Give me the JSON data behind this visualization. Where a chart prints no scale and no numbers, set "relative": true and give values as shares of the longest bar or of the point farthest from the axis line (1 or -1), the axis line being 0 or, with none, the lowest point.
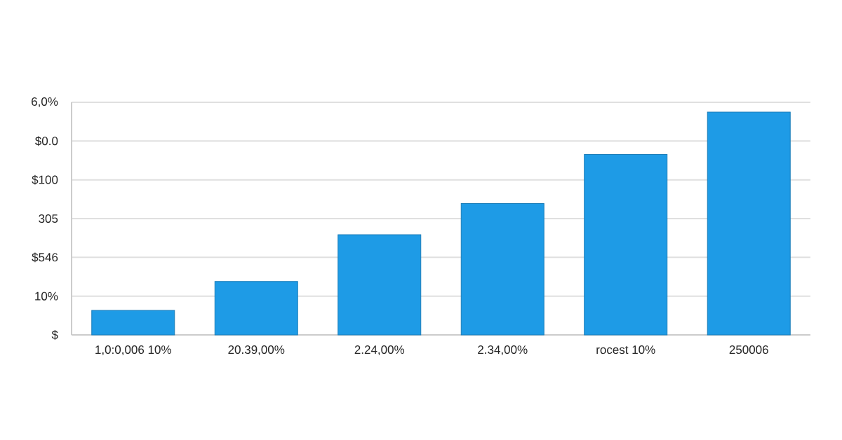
{
  "chart_data": {
    "type": "bar",
    "categories": [
      "1,0:0,006 10%",
      "20.39,00%",
      "2.24,00%",
      "2.34,00%",
      "rocest 10%",
      "250006"
    ],
    "values": [
      0.11,
      0.24,
      0.45,
      0.59,
      0.81,
      1.0
    ],
    "color": "#1e9be6",
    "relative": true,
    "annotations": [
      "$",
      "10%",
      "$546",
      "305",
      "$100",
      "$0.0",
      "6,0%"
    ],
    "grid": "y"
  }
}
